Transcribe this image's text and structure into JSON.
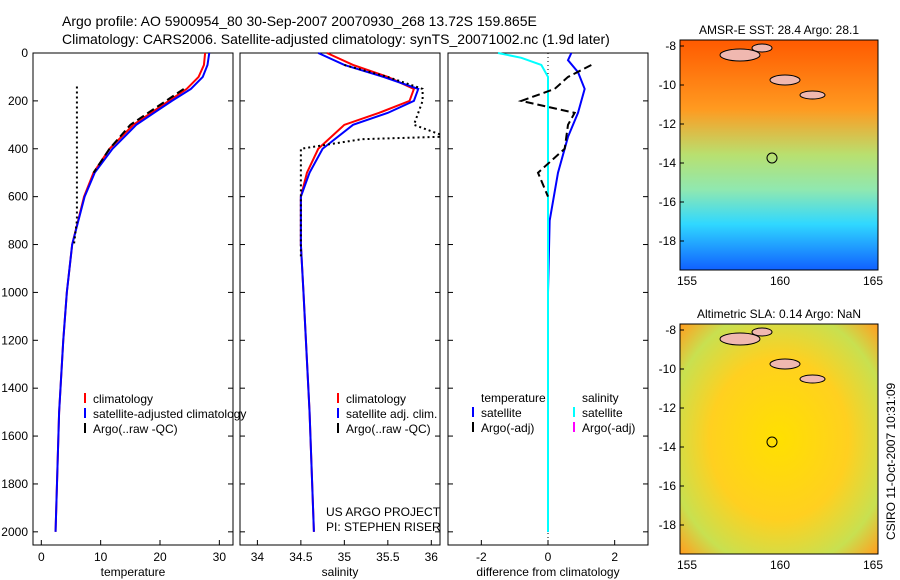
{
  "title_line1": "Argo profile: AO 5900954_80 30-Sep-2007 20070930_268 13.72S 159.865E",
  "title_line2": "Climatology: CARS2006. Satellite-adjusted climatology: synTS_20071002.nc (1.9d later)",
  "side_label": "CSIRO 11-Oct-2007 10:31:09",
  "colors": {
    "clim": "#ff0000",
    "sat": "#0000ff",
    "argo": "#000000",
    "sal_sat": "#00ffff",
    "sal_argo": "#ff00ff"
  },
  "chart_data": [
    {
      "type": "line",
      "xlabel": "temperature",
      "xlim": [
        -1.4,
        32.3
      ],
      "ylim": [
        0,
        2055
      ],
      "xticks": [
        "0",
        "10",
        "20",
        "30"
      ],
      "xtickvals": [
        0,
        10,
        20,
        30
      ],
      "yticks": [
        "0",
        "200",
        "400",
        "600",
        "800",
        "1000",
        "1200",
        "1400",
        "1600",
        "1800",
        "2000"
      ],
      "ytickvals": [
        0,
        200,
        400,
        600,
        800,
        1000,
        1200,
        1400,
        1600,
        1800,
        2000
      ],
      "legend": [
        "climatology",
        "satellite-adjusted climatology",
        "Argo(..raw -QC)"
      ],
      "series": [
        {
          "name": "climatology",
          "color": "#ff0000",
          "style": "solid",
          "depth": [
            0,
            50,
            100,
            150,
            200,
            250,
            300,
            400,
            500,
            600,
            800,
            1000,
            1200,
            1500,
            2000
          ],
          "values": [
            27.6,
            27.4,
            26.5,
            24.5,
            21.5,
            18.5,
            15.5,
            11.5,
            8.8,
            7.2,
            5.2,
            4.3,
            3.7,
            3.0,
            2.4
          ]
        },
        {
          "name": "satellite",
          "color": "#0000ff",
          "style": "solid",
          "depth": [
            0,
            50,
            100,
            150,
            200,
            250,
            300,
            400,
            500,
            600,
            800,
            1000,
            1200,
            1500,
            2000
          ],
          "values": [
            28.3,
            28.0,
            27.2,
            25.2,
            22.0,
            19.0,
            16.0,
            12.0,
            9.0,
            7.3,
            5.2,
            4.3,
            3.7,
            3.0,
            2.4
          ]
        },
        {
          "name": "Argo",
          "color": "#000000",
          "style": "dash",
          "depth": [
            150,
            200,
            250,
            300,
            400,
            500
          ],
          "values": [
            24.0,
            21.0,
            18.0,
            15.0,
            11.5,
            8.8
          ]
        },
        {
          "name": "Argo-raw",
          "color": "#000000",
          "style": "dot",
          "depth": [
            140,
            300,
            500,
            700,
            800
          ],
          "values": [
            6,
            6,
            6,
            6,
            5.5
          ]
        }
      ]
    },
    {
      "type": "line",
      "xlabel": "salinity",
      "xlim": [
        33.8,
        36.1
      ],
      "ylim": [
        0,
        2055
      ],
      "xticks": [
        "34",
        "34.5",
        "35",
        "35.5",
        "36"
      ],
      "xtickvals": [
        34,
        34.5,
        35,
        35.5,
        36
      ],
      "legend": [
        "climatology",
        "satellite adj. clim.",
        "Argo(..raw -QC)"
      ],
      "annotation": [
        "US ARGO PROJECT",
        "PI: STEPHEN RISER"
      ],
      "series": [
        {
          "name": "climatology",
          "color": "#ff0000",
          "style": "solid",
          "depth": [
            0,
            50,
            100,
            150,
            200,
            250,
            300,
            400,
            500,
            600,
            800,
            1000,
            1500,
            2000
          ],
          "values": [
            34.8,
            35.1,
            35.5,
            35.8,
            35.75,
            35.4,
            35.0,
            34.7,
            34.57,
            34.5,
            34.5,
            34.53,
            34.6,
            34.65
          ]
        },
        {
          "name": "satellite",
          "color": "#0000ff",
          "style": "solid",
          "depth": [
            0,
            50,
            100,
            150,
            200,
            250,
            300,
            400,
            500,
            600,
            800,
            1000,
            1500,
            2000
          ],
          "values": [
            34.7,
            35.0,
            35.45,
            35.85,
            35.8,
            35.5,
            35.1,
            34.75,
            34.6,
            34.5,
            34.5,
            34.53,
            34.6,
            34.65
          ]
        },
        {
          "name": "Argo-raw",
          "color": "#000000",
          "style": "dot",
          "depth": [
            50,
            100,
            150,
            200,
            300,
            340,
            350,
            360,
            400,
            600,
            800,
            850
          ],
          "values": [
            35.0,
            35.5,
            35.9,
            35.9,
            35.8,
            36.1,
            36.1,
            35.2,
            34.5,
            34.5,
            34.5,
            34.5
          ]
        }
      ]
    },
    {
      "type": "line",
      "xlabel": "difference from climatology",
      "xlim": [
        -3,
        3
      ],
      "ylim": [
        0,
        2055
      ],
      "xticks": [
        "-2",
        "0",
        "2"
      ],
      "xtickvals": [
        -2,
        0,
        2
      ],
      "legend_temp": {
        "title": "temperature",
        "items": [
          "satellite",
          "Argo(-adj)"
        ]
      },
      "legend_sal": {
        "title": "salinity",
        "items": [
          "satellite",
          "Argo(-adj)"
        ]
      },
      "series": [
        {
          "name": "temperature satellite",
          "color": "#0000ff",
          "style": "solid",
          "depth": [
            0,
            30,
            80,
            150,
            250,
            350,
            500,
            700,
            1000,
            2000
          ],
          "values": [
            0.7,
            0.6,
            0.9,
            1.1,
            0.9,
            0.6,
            0.3,
            0.05,
            0.0,
            0.0
          ]
        },
        {
          "name": "salinity satellite",
          "color": "#00ffff",
          "style": "solid",
          "depth": [
            0,
            20,
            50,
            100,
            200,
            300,
            500,
            700,
            1000,
            2000
          ],
          "values": [
            -1.5,
            -0.8,
            -0.2,
            0.0,
            0.0,
            0.0,
            0.0,
            0.0,
            0.0,
            0.0
          ]
        },
        {
          "name": "temperature Argo",
          "color": "#000000",
          "style": "dash",
          "depth": [
            50,
            100,
            150,
            200,
            250,
            300,
            400,
            500,
            600
          ],
          "values": [
            1.3,
            0.6,
            0.2,
            -0.8,
            0.8,
            0.6,
            0.5,
            -0.3,
            0.0
          ]
        }
      ]
    },
    {
      "type": "heatmap",
      "title": "AMSR-E SST: 28.4 Argo: 28.1",
      "xticks": [
        "155",
        "160",
        "165"
      ],
      "yticks": [
        "-8",
        "-10",
        "-12",
        "-14",
        "-16",
        "-18"
      ]
    },
    {
      "type": "heatmap",
      "title": "Altimetric SLA: 0.14 Argo: NaN",
      "xticks": [
        "155",
        "160",
        "165"
      ],
      "yticks": [
        "-8",
        "-10",
        "-12",
        "-14",
        "-16",
        "-18"
      ]
    }
  ]
}
